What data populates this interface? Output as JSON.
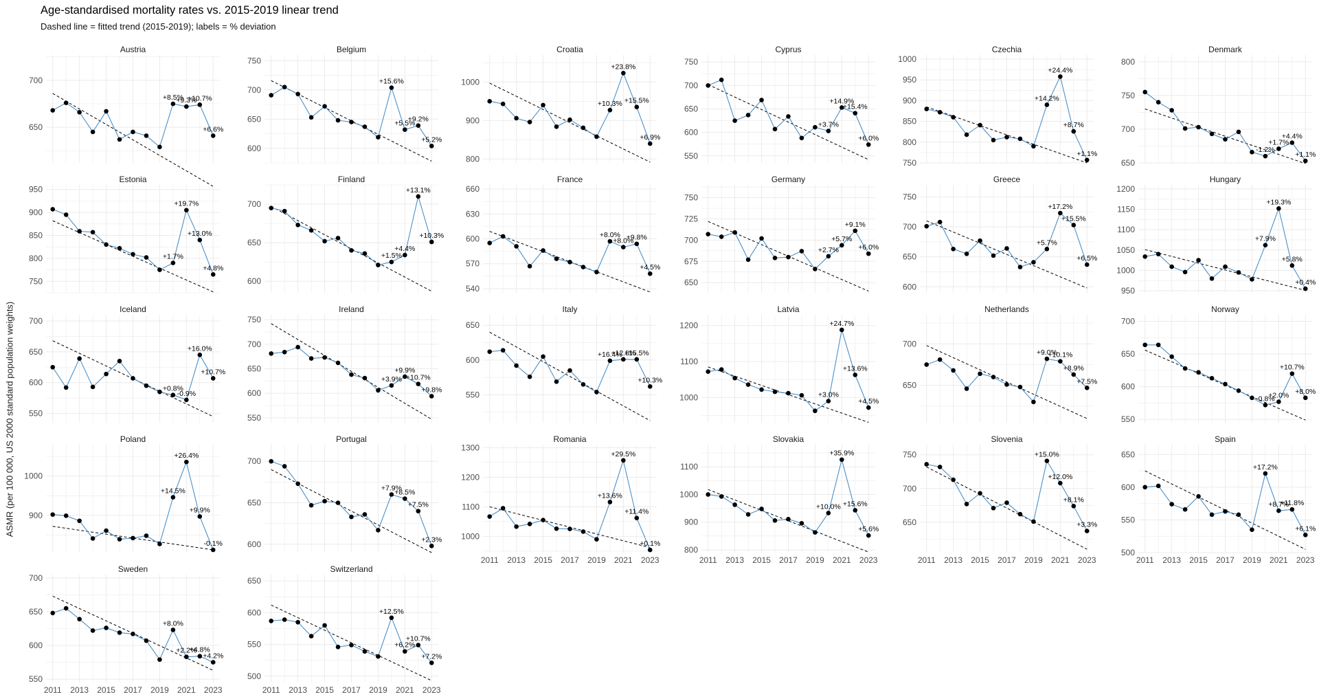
{
  "title": "Age-standardised mortality rates vs. 2015-2019 linear trend",
  "subtitle": "Dashed line = fitted trend (2015-2019); labels = % deviation",
  "y_axis_title": "ASMR (per 100 000, US 2000 standard population weights)",
  "chart_data": {
    "type": "line",
    "layout": "faceted small multiples, 6 columns x 5 rows, independent y scales, shared x axis",
    "title": "Age-standardised mortality rates vs. 2015-2019 linear trend",
    "subtitle": "Dashed line = fitted trend (2015-2019); labels = % deviation",
    "ylabel": "ASMR (per 100 000, US 2000 standard population weights)",
    "xlabel": "",
    "x": [
      2011,
      2012,
      2013,
      2014,
      2015,
      2016,
      2017,
      2018,
      2019,
      2020,
      2021,
      2022,
      2023
    ],
    "x_tick_labels": [
      "2011",
      "2013",
      "2015",
      "2017",
      "2019",
      "2021",
      "2023"
    ],
    "grid": true,
    "legend": "none",
    "colors": {
      "series_line": "#4a90c9",
      "points": "#000000",
      "trend": "#000000",
      "grid": "#ebebeb"
    },
    "panels": [
      {
        "name": "Austria",
        "ylim": [
          612,
          727
        ],
        "yticks": [
          650,
          700
        ],
        "values": [
          668,
          676,
          666,
          645,
          667,
          637,
          645,
          641,
          629,
          675,
          672,
          674,
          641
        ],
        "trend": [
          686,
          587
        ],
        "labels": [
          "+8.5%",
          "+9.3%",
          "+10.7%",
          "+6.6%"
        ]
      },
      {
        "name": "Belgium",
        "ylim": [
          575,
          760
        ],
        "yticks": [
          600,
          650,
          700,
          750
        ],
        "values": [
          691,
          705,
          693,
          653,
          672,
          648,
          645,
          637,
          619,
          704,
          632,
          639,
          604
        ],
        "trend": [
          716,
          578
        ],
        "labels": [
          "+15.6%",
          "+5.5%",
          "+9.2%",
          "+5.2%"
        ]
      },
      {
        "name": "Croatia",
        "ylim": [
          790,
          1070
        ],
        "yticks": [
          800,
          900,
          1000
        ],
        "values": [
          950,
          943,
          906,
          896,
          940,
          884,
          902,
          881,
          858,
          927,
          1023,
          935,
          840
        ],
        "trend": [
          997,
          792
        ],
        "labels": [
          "+10.3%",
          "+23.8%",
          "+15.5%",
          "+6.9%"
        ]
      },
      {
        "name": "Cyprus",
        "ylim": [
          535,
          765
        ],
        "yticks": [
          550,
          600,
          650,
          700,
          750
        ],
        "values": [
          700,
          712,
          625,
          637,
          669,
          607,
          634,
          588,
          611,
          603,
          653,
          641,
          574
        ],
        "trend": [
          702,
          542
        ],
        "labels": [
          "+3.7%",
          "+14.9%",
          "+15.4%",
          "+6.0%"
        ]
      },
      {
        "name": "Czechia",
        "ylim": [
          750,
          1010
        ],
        "yticks": [
          750,
          800,
          850,
          900,
          950,
          1000
        ],
        "values": [
          880,
          872,
          860,
          818,
          841,
          805,
          812,
          808,
          790,
          890,
          958,
          826,
          757
        ],
        "trend": [
          885,
          750
        ],
        "labels": [
          "+14.2%",
          "+24.4%",
          "+8.7%",
          "+1.1%"
        ]
      },
      {
        "name": "Denmark",
        "ylim": [
          650,
          810
        ],
        "yticks": [
          650,
          700,
          750,
          800
        ],
        "values": [
          755,
          740,
          728,
          701,
          703,
          693,
          685,
          696,
          666,
          660,
          671,
          680,
          653
        ],
        "trend": [
          730,
          649
        ],
        "labels": [
          "-1.2%",
          "+1.7%",
          "+4.4%",
          "+1.1%"
        ]
      },
      {
        "name": "Estonia",
        "ylim": [
          725,
          960
        ],
        "yticks": [
          750,
          800,
          850,
          900,
          950
        ],
        "values": [
          907,
          895,
          859,
          857,
          830,
          822,
          809,
          802,
          775,
          790,
          905,
          840,
          765
        ],
        "trend": [
          882,
          727
        ],
        "labels": [
          "+1.7%",
          "+19.7%",
          "+13.0%",
          "+4.8%"
        ]
      },
      {
        "name": "Finland",
        "ylim": [
          585,
          725
        ],
        "yticks": [
          600,
          650,
          700
        ],
        "values": [
          695,
          691,
          673,
          666,
          652,
          656,
          640,
          636,
          621,
          625,
          634,
          710,
          651
        ],
        "trend": [
          697,
          587
        ],
        "labels": [
          "+1.5%",
          "+4.4%",
          "+13.1%",
          "+10.3%"
        ]
      },
      {
        "name": "France",
        "ylim": [
          535,
          665
        ],
        "yticks": [
          540,
          570,
          600,
          630,
          660
        ],
        "values": [
          595,
          603,
          591,
          567,
          586,
          576,
          572,
          566,
          560,
          597,
          590,
          594,
          558
        ],
        "trend": [
          609,
          536
        ],
        "labels": [
          "+8.0%",
          "+8.0%",
          "+9.8%",
          "+4.5%"
        ]
      },
      {
        "name": "Germany",
        "ylim": [
          638,
          765
        ],
        "yticks": [
          650,
          675,
          700,
          725,
          750
        ],
        "values": [
          707,
          704,
          709,
          677,
          702,
          679,
          680,
          687,
          666,
          681,
          694,
          711,
          684
        ],
        "trend": [
          722,
          640
        ],
        "labels": [
          "+2.7%",
          "+5.7%",
          "+9.1%",
          "+6.0%"
        ]
      },
      {
        "name": "Greece",
        "ylim": [
          590,
          770
        ],
        "yticks": [
          600,
          650,
          700,
          750
        ],
        "values": [
          701,
          708,
          663,
          655,
          677,
          652,
          664,
          633,
          641,
          663,
          723,
          703,
          637
        ],
        "trend": [
          710,
          598
        ],
        "labels": [
          "+5.7%",
          "+17.2%",
          "+15.5%",
          "+6.5%"
        ]
      },
      {
        "name": "Hungary",
        "ylim": [
          945,
          1210
        ],
        "yticks": [
          950,
          1000,
          1050,
          1100,
          1150,
          1200
        ],
        "values": [
          1034,
          1040,
          1009,
          996,
          1025,
          980,
          1009,
          995,
          978,
          1062,
          1152,
          1012,
          955
        ],
        "trend": [
          1051,
          951
        ],
        "labels": [
          "+7.9%",
          "+19.3%",
          "+5.8%",
          "+0.4%"
        ]
      },
      {
        "name": "Iceland",
        "ylim": [
          535,
          710
        ],
        "yticks": [
          550,
          600,
          650,
          700
        ],
        "values": [
          625,
          592,
          639,
          593,
          614,
          635,
          607,
          595,
          585,
          580,
          572,
          645,
          607
        ],
        "trend": [
          668,
          545
        ],
        "labels": [
          "+0.8%",
          "-0.9%",
          "+16.0%",
          "+10.7%"
        ]
      },
      {
        "name": "Ireland",
        "ylim": [
          540,
          760
        ],
        "yticks": [
          550,
          600,
          650,
          700,
          750
        ],
        "values": [
          681,
          684,
          694,
          671,
          673,
          662,
          638,
          631,
          606,
          616,
          634,
          619,
          594
        ],
        "trend": [
          742,
          547
        ],
        "labels": [
          "+3.9%",
          "+9.9%",
          "+10.7%",
          "+9.8%"
        ]
      },
      {
        "name": "Italy",
        "ylim": [
          510,
          665
        ],
        "yticks": [
          550,
          600,
          650
        ],
        "values": [
          612,
          614,
          592,
          576,
          605,
          569,
          585,
          565,
          554,
          599,
          601,
          601,
          562
        ],
        "trend": [
          640,
          513
        ],
        "labels": [
          "+16.4%",
          "+12.8%",
          "+15.5%",
          "+10.3%"
        ]
      },
      {
        "name": "Latvia",
        "ylim": [
          930,
          1230
        ],
        "yticks": [
          1000,
          1100,
          1200
        ],
        "values": [
          1072,
          1078,
          1054,
          1036,
          1022,
          1016,
          1012,
          1006,
          963,
          990,
          1188,
          1063,
          972
        ],
        "trend": [
          1085,
          931
        ],
        "labels": [
          "+3.0%",
          "+24.7%",
          "+13.6%",
          "+4.5%"
        ]
      },
      {
        "name": "Netherlands",
        "ylim": [
          605,
          735
        ],
        "yticks": [
          650,
          700
        ],
        "values": [
          675,
          681,
          668,
          646,
          664,
          660,
          651,
          648,
          630,
          682,
          679,
          663,
          647
        ],
        "trend": [
          698,
          610
        ],
        "labels": [
          "+9.0%",
          "+10.1%",
          "+8.9%",
          "+7.5%"
        ]
      },
      {
        "name": "Norway",
        "ylim": [
          545,
          710
        ],
        "yticks": [
          550,
          600,
          650,
          700
        ],
        "values": [
          664,
          664,
          646,
          628,
          622,
          613,
          604,
          594,
          583,
          572,
          577,
          620,
          583
        ],
        "trend": [
          656,
          549
        ],
        "labels": [
          "-0.8%",
          "+2.0%",
          "+10.7%",
          "+8.0%"
        ]
      },
      {
        "name": "Poland",
        "ylim": [
          805,
          1080
        ],
        "yticks": [
          900,
          1000
        ],
        "values": [
          902,
          899,
          886,
          841,
          861,
          839,
          842,
          848,
          827,
          946,
          1036,
          897,
          812
        ],
        "trend": [
          872,
          812
        ],
        "labels": [
          "+14.5%",
          "+26.4%",
          "+9.9%",
          "-0.1%"
        ]
      },
      {
        "name": "Portugal",
        "ylim": [
          590,
          720
        ],
        "yticks": [
          600,
          650,
          700
        ],
        "values": [
          700,
          694,
          673,
          647,
          652,
          650,
          633,
          636,
          617,
          660,
          655,
          640,
          598
        ],
        "trend": [
          690,
          590
        ],
        "labels": [
          "+7.9%",
          "+8.5%",
          "+7.5%",
          "+2.3%"
        ]
      },
      {
        "name": "Romania",
        "ylim": [
          945,
          1310
        ],
        "yticks": [
          1000,
          1100,
          1200,
          1300
        ],
        "values": [
          1067,
          1095,
          1033,
          1042,
          1055,
          1026,
          1025,
          1016,
          990,
          1116,
          1257,
          1062,
          954
        ],
        "trend": [
          1100,
          962
        ],
        "labels": [
          "+13.6%",
          "+29.5%",
          "+11.4%",
          "+0.1%"
        ]
      },
      {
        "name": "Slovakia",
        "ylim": [
          790,
          1180
        ],
        "yticks": [
          800,
          900,
          1000,
          1100
        ],
        "values": [
          1000,
          993,
          963,
          928,
          948,
          906,
          911,
          896,
          863,
          933,
          1126,
          943,
          852
        ],
        "trend": [
          1018,
          792
        ],
        "labels": [
          "+10.0%",
          "+35.9%",
          "+15.6%",
          "+5.6%"
        ]
      },
      {
        "name": "Slovenia",
        "ylim": [
          605,
          765
        ],
        "yticks": [
          650,
          700,
          750
        ],
        "values": [
          736,
          732,
          713,
          677,
          693,
          671,
          679,
          662,
          651,
          741,
          708,
          674,
          637
        ],
        "trend": [
          732,
          610
        ],
        "labels": [
          "+15.0%",
          "+12.0%",
          "+8.1%",
          "+3.3%"
        ]
      },
      {
        "name": "Spain",
        "ylim": [
          500,
          665
        ],
        "yticks": [
          500,
          550,
          600,
          650
        ],
        "values": [
          600,
          602,
          574,
          566,
          586,
          558,
          563,
          558,
          535,
          621,
          564,
          566,
          527
        ],
        "trend": [
          625,
          505
        ],
        "labels": [
          "+17.2%",
          "+8.7%",
          "+11.8%",
          "+6.1%"
        ]
      },
      {
        "name": "Sweden",
        "ylim": [
          545,
          705
        ],
        "yticks": [
          550,
          600,
          650,
          700
        ],
        "values": [
          648,
          655,
          639,
          622,
          626,
          619,
          617,
          607,
          579,
          623,
          583,
          584,
          575
        ],
        "trend": [
          673,
          563
        ],
        "labels": [
          "+8.0%",
          "+2.2%",
          "+4.8%",
          "+4.2%"
        ]
      },
      {
        "name": "Switzerland",
        "ylim": [
          490,
          660
        ],
        "yticks": [
          500,
          550,
          600,
          650
        ],
        "values": [
          587,
          589,
          585,
          563,
          580,
          546,
          549,
          539,
          531,
          592,
          539,
          549,
          521
        ],
        "trend": [
          612,
          493
        ],
        "labels": [
          "+12.5%",
          "+6.2%",
          "+10.7%",
          "+7.2%"
        ]
      }
    ]
  }
}
